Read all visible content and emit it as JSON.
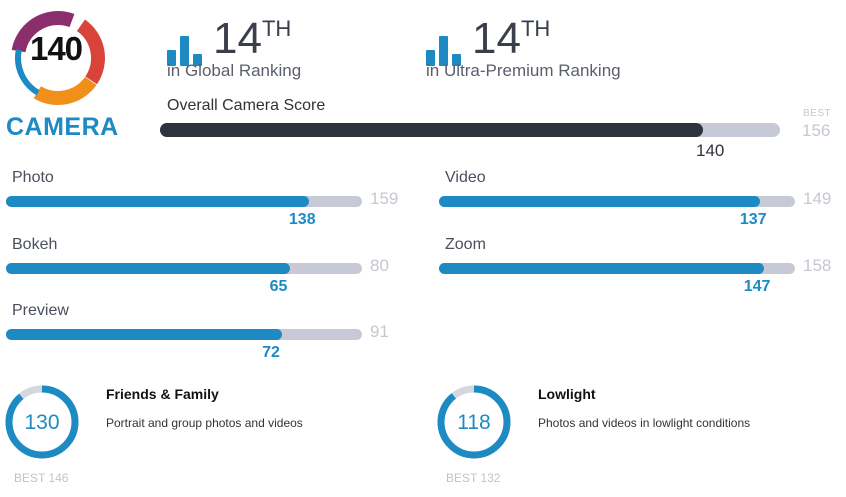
{
  "brand": {
    "logo_score": "140",
    "category": "CAMERA",
    "colors": {
      "accent": "#1d8ac4",
      "dark": "#2f333e",
      "track": "#c7c9d6",
      "muted": "#c5c8d0",
      "logo_ring": [
        "#8a2f6b",
        "#d8443a",
        "#f08f1a",
        "#1d8ac4"
      ]
    }
  },
  "rankings": [
    {
      "icon": "bar-chart-icon",
      "rank": "14",
      "suffix": "TH",
      "label": "in Global Ranking"
    },
    {
      "icon": "bar-chart-icon",
      "rank": "14",
      "suffix": "TH",
      "label": "in Ultra-Premium Ranking"
    }
  ],
  "overall": {
    "title": "Overall Camera Score",
    "score": 140,
    "best_label": "BEST",
    "best": 156
  },
  "subscores": [
    {
      "label": "Photo",
      "score": 138,
      "best": 159
    },
    {
      "label": "Video",
      "score": 137,
      "best": 149
    },
    {
      "label": "Bokeh",
      "score": 65,
      "best": 80
    },
    {
      "label": "Zoom",
      "score": 147,
      "best": 158
    },
    {
      "label": "Preview",
      "score": 72,
      "best": 91
    }
  ],
  "features": [
    {
      "score": "130",
      "best": "BEST 146",
      "title": "Friends & Family",
      "description": "Portrait and group photos and videos"
    },
    {
      "score": "118",
      "best": "BEST 132",
      "title": "Lowlight",
      "description": "Photos and videos in lowlight conditions"
    }
  ]
}
